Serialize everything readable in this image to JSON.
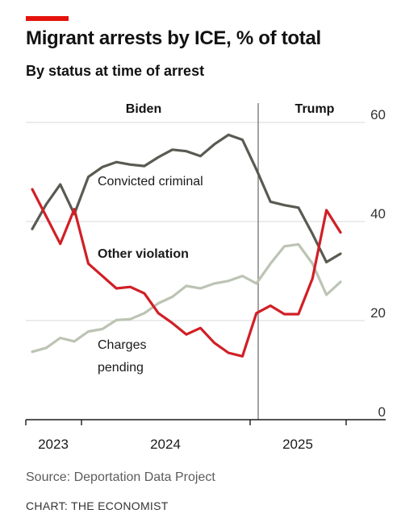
{
  "header": {
    "title": "Migrant arrests by ICE, % of total",
    "subtitle": "By status at time of arrest"
  },
  "footer": {
    "source": "Source: Deportation Data Project",
    "credit": "CHART: THE ECONOMIST"
  },
  "colors": {
    "brand_red": "#e3120b",
    "convicted": "#5a5a52",
    "other": "#d11f26",
    "pending": "#bcc4b4",
    "grid": "#d9d9d9",
    "axis": "#1a1a1a"
  },
  "chart_data": {
    "type": "line",
    "ylim": [
      0,
      60
    ],
    "y_ticks": [
      "0",
      "20",
      "40",
      "60"
    ],
    "y_tick_values": [
      0,
      20,
      40,
      60
    ],
    "x_tick_labels": [
      "2023",
      "2024",
      "2025"
    ],
    "grid": true,
    "periods": [
      {
        "name": "Biden",
        "range": "2023–Jan 2025"
      },
      {
        "name": "Trump",
        "range": "from Jan 2025"
      }
    ],
    "series": [
      {
        "name": "Convicted criminal",
        "values": [
          38.5,
          43.5,
          47.5,
          41.5,
          49,
          51,
          52,
          51.5,
          51.2,
          53,
          54.5,
          54.2,
          53.2,
          55.6,
          57.5,
          56.5,
          50.5,
          44,
          43.3,
          42.8,
          37.5,
          31.8,
          33.5
        ]
      },
      {
        "name": "Other violation",
        "values": [
          46.5,
          41,
          35.5,
          42.5,
          31.5,
          29,
          26.5,
          26.8,
          25.5,
          21.5,
          19.5,
          17.2,
          18.5,
          15.5,
          13.5,
          12.8,
          21.5,
          23,
          21.3,
          21.3,
          28.5,
          42.3,
          37.8
        ]
      },
      {
        "name": "Charges pending",
        "values": [
          13.7,
          14.5,
          16.5,
          15.8,
          17.8,
          18.3,
          20.1,
          20.3,
          21.5,
          23.5,
          24.8,
          27,
          26.5,
          27.5,
          28,
          29,
          27.5,
          31.5,
          35,
          35.4,
          31.5,
          25.2,
          27.8
        ]
      }
    ]
  }
}
